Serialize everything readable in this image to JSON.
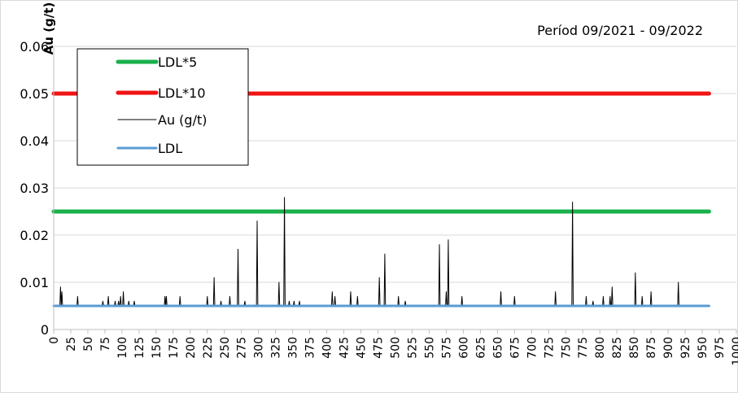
{
  "chart_data": {
    "type": "line",
    "annotation": "Períod 09/2021 - 09/2022",
    "ylabel": "Au (g/t)",
    "xlabel": "",
    "xlim": [
      0,
      1000
    ],
    "ylim": [
      0,
      0.06
    ],
    "x_ticks": [
      0,
      25,
      50,
      75,
      100,
      125,
      150,
      175,
      200,
      225,
      250,
      275,
      300,
      325,
      350,
      375,
      400,
      425,
      450,
      475,
      500,
      525,
      550,
      575,
      600,
      625,
      650,
      675,
      700,
      725,
      750,
      775,
      800,
      825,
      850,
      875,
      900,
      925,
      950,
      975,
      1000
    ],
    "y_ticks": [
      {
        "value": 0,
        "label": "0"
      },
      {
        "value": 0.01,
        "label": "0.01"
      },
      {
        "value": 0.02,
        "label": "0.02"
      },
      {
        "value": 0.03,
        "label": "0.03"
      },
      {
        "value": 0.04,
        "label": "0.04"
      },
      {
        "value": 0.05,
        "label": "0.05"
      },
      {
        "value": 0.06,
        "label": "0.06"
      }
    ],
    "grid": {
      "horizontal": true,
      "vertical": false
    },
    "legend_position": "top-left",
    "series": [
      {
        "name": "LDL*5",
        "color": "#19b04b",
        "x": [
          0,
          960
        ],
        "values": [
          0.025,
          0.025
        ]
      },
      {
        "name": "LDL*10",
        "color": "#f01313",
        "x": [
          0,
          960
        ],
        "values": [
          0.05,
          0.05
        ]
      },
      {
        "name": "Au (g/t)",
        "color": "#000000",
        "baseline": 0.005,
        "n_points": 960,
        "peaks": [
          [
            10,
            0.009
          ],
          [
            12,
            0.008
          ],
          [
            35,
            0.007
          ],
          [
            72,
            0.006
          ],
          [
            80,
            0.007
          ],
          [
            90,
            0.006
          ],
          [
            95,
            0.006
          ],
          [
            98,
            0.007
          ],
          [
            102,
            0.008
          ],
          [
            110,
            0.006
          ],
          [
            118,
            0.006
          ],
          [
            163,
            0.007
          ],
          [
            165,
            0.007
          ],
          [
            185,
            0.007
          ],
          [
            225,
            0.007
          ],
          [
            235,
            0.011
          ],
          [
            245,
            0.006
          ],
          [
            258,
            0.007
          ],
          [
            270,
            0.017
          ],
          [
            280,
            0.006
          ],
          [
            298,
            0.023
          ],
          [
            330,
            0.01
          ],
          [
            338,
            0.028
          ],
          [
            345,
            0.006
          ],
          [
            352,
            0.006
          ],
          [
            360,
            0.006
          ],
          [
            408,
            0.008
          ],
          [
            412,
            0.007
          ],
          [
            435,
            0.008
          ],
          [
            445,
            0.007
          ],
          [
            477,
            0.011
          ],
          [
            485,
            0.016
          ],
          [
            505,
            0.007
          ],
          [
            515,
            0.006
          ],
          [
            565,
            0.018
          ],
          [
            575,
            0.008
          ],
          [
            578,
            0.019
          ],
          [
            598,
            0.007
          ],
          [
            655,
            0.008
          ],
          [
            675,
            0.007
          ],
          [
            735,
            0.008
          ],
          [
            760,
            0.027
          ],
          [
            780,
            0.007
          ],
          [
            790,
            0.006
          ],
          [
            805,
            0.007
          ],
          [
            815,
            0.007
          ],
          [
            818,
            0.009
          ],
          [
            852,
            0.012
          ],
          [
            862,
            0.007
          ],
          [
            875,
            0.008
          ],
          [
            915,
            0.01
          ]
        ]
      },
      {
        "name": "LDL",
        "color": "#5b9bd5",
        "x": [
          0,
          960
        ],
        "values": [
          0.005,
          0.005
        ]
      }
    ]
  }
}
